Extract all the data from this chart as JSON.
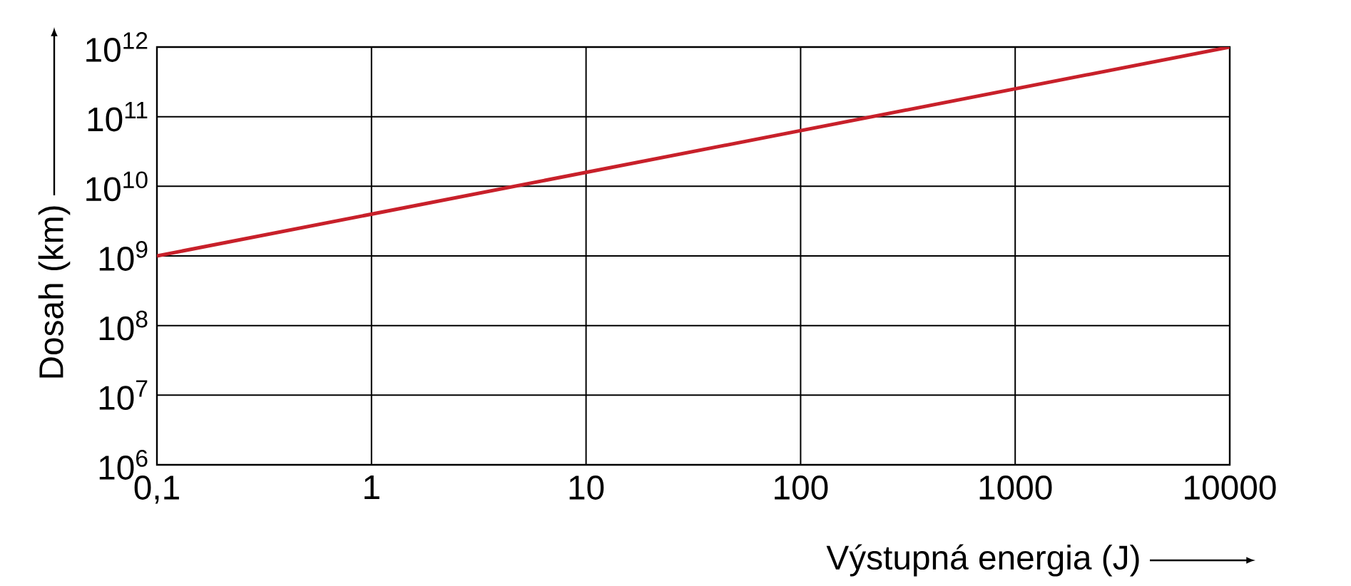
{
  "chart_data": {
    "type": "line",
    "xlabel": "Výstupná energia (J)",
    "ylabel": "Dosah (km)",
    "x": [
      0.1,
      10000
    ],
    "series": [
      {
        "color": "#c8202a",
        "values": [
          1000000000,
          1000000000000
        ]
      }
    ],
    "xlim": [
      0.1,
      10000
    ],
    "ylim": [
      1000000,
      1000000000000
    ],
    "xticks": [
      {
        "value": 0.1,
        "label": "0,1"
      },
      1,
      10,
      100,
      1000,
      10000
    ],
    "yticks": [
      {
        "value": 1000000,
        "label": "10$^{6}$"
      },
      {
        "value": 10000000,
        "label": "10$^{7}$"
      },
      {
        "value": 100000000,
        "label": "10$^{8}$"
      },
      {
        "value": 1000000000,
        "label": "10$^{9}$"
      },
      {
        "value": 10000000000,
        "label": "10$^{10}$"
      },
      {
        "value": 100000000000,
        "label": "10$^{11}$"
      },
      {
        "value": 1000000000000,
        "label": "10$^{12}$"
      }
    ],
    "log": "xy",
    "grid": true,
    "marker": "none",
    "line_style": "solid"
  }
}
